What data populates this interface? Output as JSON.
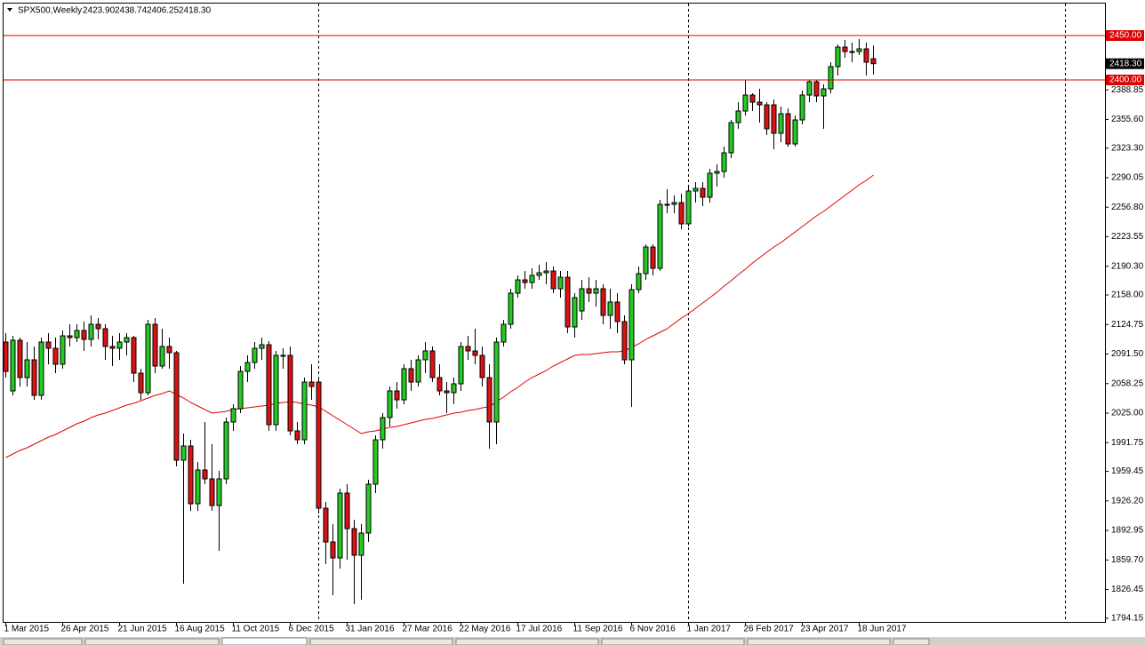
{
  "chart_data": {
    "type": "candlestick",
    "title": "SPX500,Weekly",
    "ohlc_labels": [
      "2423.90",
      "2438.74",
      "2406.25",
      "2418.30"
    ],
    "up_color": "#22cc22",
    "down_color": "#dd1111",
    "outline_color": "#000000",
    "categories": [
      "1 Mar 2015",
      null,
      null,
      null,
      null,
      null,
      null,
      null,
      "26 Apr 2015",
      null,
      null,
      null,
      null,
      null,
      null,
      null,
      "21 Jun 2015",
      null,
      null,
      null,
      null,
      null,
      null,
      null,
      "16 Aug 2015",
      null,
      null,
      null,
      null,
      null,
      null,
      null,
      "11 Oct 2015",
      null,
      null,
      null,
      null,
      null,
      null,
      null,
      "6 Dec 2015",
      null,
      null,
      null,
      null,
      null,
      null,
      null,
      "31 Jan 2016",
      null,
      null,
      null,
      null,
      null,
      null,
      null,
      "27 Mar 2016",
      null,
      null,
      null,
      null,
      null,
      null,
      null,
      "22 May 2016",
      null,
      null,
      null,
      null,
      null,
      null,
      null,
      "17 Jul 2016",
      null,
      null,
      null,
      null,
      null,
      null,
      null,
      "11 Sep 2016",
      null,
      null,
      null,
      null,
      null,
      null,
      null,
      "6 Nov 2016",
      null,
      null,
      null,
      null,
      null,
      null,
      null,
      "1 Jan 2017",
      null,
      null,
      null,
      null,
      null,
      null,
      null,
      "26 Feb 2017",
      null,
      null,
      null,
      null,
      null,
      null,
      null,
      "23 Apr 2017",
      null,
      null,
      null,
      null,
      null,
      null,
      null,
      "18 Jun 2017",
      null,
      null
    ],
    "values": [
      [
        2105,
        2115,
        2065,
        2072
      ],
      [
        2050,
        2112,
        2045,
        2107
      ],
      [
        2107,
        2110,
        2055,
        2065
      ],
      [
        2065,
        2105,
        2055,
        2085
      ],
      [
        2085,
        2100,
        2040,
        2045
      ],
      [
        2045,
        2110,
        2040,
        2105
      ],
      [
        2105,
        2115,
        2080,
        2098
      ],
      [
        2098,
        2110,
        2070,
        2080
      ],
      [
        2080,
        2118,
        2075,
        2112
      ],
      [
        2112,
        2125,
        2100,
        2110
      ],
      [
        2110,
        2125,
        2105,
        2118
      ],
      [
        2118,
        2128,
        2095,
        2108
      ],
      [
        2108,
        2135,
        2100,
        2125
      ],
      [
        2125,
        2132,
        2108,
        2120
      ],
      [
        2120,
        2125,
        2085,
        2100
      ],
      [
        2100,
        2112,
        2078,
        2098
      ],
      [
        2098,
        2115,
        2085,
        2105
      ],
      [
        2105,
        2115,
        2090,
        2110
      ],
      [
        2110,
        2112,
        2060,
        2070
      ],
      [
        2070,
        2075,
        2040,
        2048
      ],
      [
        2048,
        2130,
        2045,
        2125
      ],
      [
        2125,
        2132,
        2070,
        2078
      ],
      [
        2078,
        2120,
        2075,
        2100
      ],
      [
        2100,
        2110,
        2075,
        2093
      ],
      [
        2093,
        2095,
        1965,
        1972
      ],
      [
        1972,
        2002,
        1833,
        1988
      ],
      [
        1988,
        1995,
        1915,
        1923
      ],
      [
        1923,
        1970,
        1915,
        1961
      ],
      [
        1961,
        2015,
        1945,
        1951
      ],
      [
        1951,
        1990,
        1915,
        1921
      ],
      [
        1921,
        1960,
        1870,
        1951
      ],
      [
        1951,
        2020,
        1945,
        2015
      ],
      [
        2015,
        2035,
        2005,
        2030
      ],
      [
        2030,
        2078,
        2025,
        2072
      ],
      [
        2072,
        2090,
        2060,
        2082
      ],
      [
        2082,
        2105,
        2075,
        2098
      ],
      [
        2098,
        2110,
        2085,
        2102
      ],
      [
        2102,
        2106,
        2005,
        2012
      ],
      [
        2012,
        2095,
        2005,
        2090
      ],
      [
        2090,
        2098,
        2075,
        2090
      ],
      [
        2090,
        2100,
        2000,
        2005
      ],
      [
        2005,
        2015,
        1990,
        1995
      ],
      [
        1995,
        2065,
        1990,
        2060
      ],
      [
        2060,
        2080,
        2040,
        2055
      ],
      [
        2060,
        2065,
        1912,
        1918
      ],
      [
        1918,
        1925,
        1855,
        1880
      ],
      [
        1880,
        1900,
        1820,
        1862
      ],
      [
        1862,
        1940,
        1850,
        1935
      ],
      [
        1935,
        1945,
        1860,
        1895
      ],
      [
        1895,
        1905,
        1810,
        1865
      ],
      [
        1865,
        1900,
        1815,
        1890
      ],
      [
        1890,
        1950,
        1880,
        1945
      ],
      [
        1945,
        2000,
        1935,
        1995
      ],
      [
        1995,
        2025,
        1985,
        2020
      ],
      [
        2020,
        2055,
        2010,
        2050
      ],
      [
        2050,
        2060,
        2030,
        2040
      ],
      [
        2040,
        2080,
        2035,
        2075
      ],
      [
        2075,
        2085,
        2050,
        2060
      ],
      [
        2060,
        2090,
        2055,
        2085
      ],
      [
        2085,
        2105,
        2070,
        2095
      ],
      [
        2095,
        2100,
        2060,
        2065
      ],
      [
        2065,
        2080,
        2045,
        2050
      ],
      [
        2050,
        2060,
        2025,
        2048
      ],
      [
        2048,
        2065,
        2035,
        2058
      ],
      [
        2058,
        2105,
        2050,
        2100
      ],
      [
        2100,
        2112,
        2085,
        2095
      ],
      [
        2095,
        2120,
        2080,
        2090
      ],
      [
        2090,
        2100,
        2055,
        2065
      ],
      [
        2065,
        2080,
        1985,
        2015
      ],
      [
        2015,
        2110,
        1990,
        2105
      ],
      [
        2105,
        2130,
        2100,
        2125
      ],
      [
        2125,
        2165,
        2120,
        2160
      ],
      [
        2160,
        2180,
        2155,
        2175
      ],
      [
        2175,
        2185,
        2165,
        2172
      ],
      [
        2172,
        2188,
        2165,
        2180
      ],
      [
        2180,
        2192,
        2175,
        2183
      ],
      [
        2183,
        2195,
        2170,
        2185
      ],
      [
        2185,
        2190,
        2160,
        2165
      ],
      [
        2165,
        2185,
        2155,
        2178
      ],
      [
        2178,
        2185,
        2115,
        2122
      ],
      [
        2122,
        2160,
        2110,
        2155
      ],
      [
        2140,
        2175,
        2130,
        2165
      ],
      [
        2165,
        2178,
        2150,
        2160
      ],
      [
        2160,
        2175,
        2145,
        2165
      ],
      [
        2165,
        2170,
        2125,
        2135
      ],
      [
        2135,
        2165,
        2120,
        2150
      ],
      [
        2150,
        2160,
        2115,
        2128
      ],
      [
        2128,
        2135,
        2080,
        2085
      ],
      [
        2085,
        2170,
        2032,
        2164
      ],
      [
        2164,
        2190,
        2160,
        2182
      ],
      [
        2182,
        2215,
        2175,
        2212
      ],
      [
        2212,
        2215,
        2180,
        2188
      ],
      [
        2188,
        2265,
        2185,
        2260
      ],
      [
        2260,
        2277,
        2250,
        2260
      ],
      [
        2260,
        2270,
        2250,
        2262
      ],
      [
        2262,
        2272,
        2232,
        2238
      ],
      [
        2238,
        2282,
        2235,
        2275
      ],
      [
        2275,
        2285,
        2262,
        2278
      ],
      [
        2278,
        2285,
        2258,
        2268
      ],
      [
        2268,
        2300,
        2262,
        2295
      ],
      [
        2295,
        2305,
        2280,
        2297
      ],
      [
        2297,
        2325,
        2290,
        2318
      ],
      [
        2318,
        2355,
        2312,
        2352
      ],
      [
        2352,
        2375,
        2345,
        2365
      ],
      [
        2365,
        2400,
        2360,
        2383
      ],
      [
        2383,
        2385,
        2365,
        2375
      ],
      [
        2375,
        2390,
        2352,
        2372
      ],
      [
        2372,
        2375,
        2338,
        2345
      ],
      [
        2372,
        2378,
        2322,
        2340
      ],
      [
        2340,
        2370,
        2330,
        2362
      ],
      [
        2362,
        2368,
        2325,
        2328
      ],
      [
        2328,
        2360,
        2325,
        2355
      ],
      [
        2355,
        2388,
        2350,
        2383
      ],
      [
        2383,
        2400,
        2375,
        2398
      ],
      [
        2398,
        2400,
        2375,
        2382
      ],
      [
        2382,
        2395,
        2345,
        2390
      ],
      [
        2390,
        2420,
        2385,
        2415
      ],
      [
        2415,
        2440,
        2405,
        2437
      ],
      [
        2437,
        2445,
        2425,
        2432
      ],
      [
        2432,
        2442,
        2420,
        2432
      ],
      [
        2432,
        2446,
        2428,
        2435
      ],
      [
        2435,
        2442,
        2405,
        2420
      ],
      [
        2423.9,
        2438.74,
        2406.25,
        2418.3
      ]
    ],
    "ma": {
      "color": "#e00000",
      "values": [
        1975,
        1979,
        1983,
        1986,
        1990,
        1994,
        1998,
        2001,
        2005,
        2009,
        2013,
        2016,
        2020,
        2023,
        2025,
        2028,
        2031,
        2034,
        2036,
        2039,
        2042,
        2045,
        2047,
        2050,
        2046,
        2042,
        2037,
        2033,
        2029,
        2025,
        2026,
        2027,
        2029,
        2030,
        2031,
        2032,
        2033,
        2034,
        2036,
        2037,
        2038,
        2037,
        2035,
        2034,
        2032,
        2027,
        2022,
        2017,
        2012,
        2007,
        2002,
        2004,
        2005,
        2007,
        2009,
        2010,
        2012,
        2014,
        2016,
        2018,
        2019,
        2021,
        2023,
        2025,
        2026,
        2028,
        2029,
        2031,
        2032,
        2038,
        2043,
        2049,
        2054,
        2060,
        2065,
        2069,
        2073,
        2078,
        2082,
        2086,
        2090,
        2091,
        2091,
        2092,
        2093,
        2094,
        2094,
        2095,
        2099,
        2103,
        2108,
        2112,
        2116,
        2120,
        2126,
        2132,
        2137,
        2143,
        2149,
        2155,
        2161,
        2168,
        2174,
        2181,
        2187,
        2194,
        2200,
        2206,
        2212,
        2217,
        2223,
        2229,
        2235,
        2241,
        2247,
        2252,
        2258,
        2264,
        2270,
        2276,
        2282,
        2287,
        2293
      ]
    },
    "levels": [
      {
        "value": 2450,
        "label": "2450.00"
      },
      {
        "value": 2400,
        "label": "2400.00"
      }
    ],
    "level_color": "#dd0000",
    "last_price": {
      "value": 2418.3,
      "label": "2418.30"
    },
    "ylim": [
      1790,
      2486
    ],
    "yticks": [
      {
        "value": 2388.85,
        "label": "2388.85"
      },
      {
        "value": 2355.6,
        "label": "2355.60"
      },
      {
        "value": 2323.3,
        "label": "2323.30"
      },
      {
        "value": 2290.05,
        "label": "2290.05"
      },
      {
        "value": 2256.8,
        "label": "2256.80"
      },
      {
        "value": 2223.55,
        "label": "2223.55"
      },
      {
        "value": 2190.3,
        "label": "2190.30"
      },
      {
        "value": 2158,
        "label": "2158.00"
      },
      {
        "value": 2124.75,
        "label": "2124.75"
      },
      {
        "value": 2091.5,
        "label": "2091.50"
      },
      {
        "value": 2058.25,
        "label": "2058.25"
      },
      {
        "value": 2025,
        "label": "2025.00"
      },
      {
        "value": 1991.75,
        "label": "1991.75"
      },
      {
        "value": 1959.45,
        "label": "1959.45"
      },
      {
        "value": 1926.2,
        "label": "1926.20"
      },
      {
        "value": 1892.95,
        "label": "1892.95"
      },
      {
        "value": 1859.7,
        "label": "1859.70"
      },
      {
        "value": 1826.45,
        "label": "1826.45"
      },
      {
        "value": 1794.15,
        "label": "1794.15"
      }
    ]
  }
}
